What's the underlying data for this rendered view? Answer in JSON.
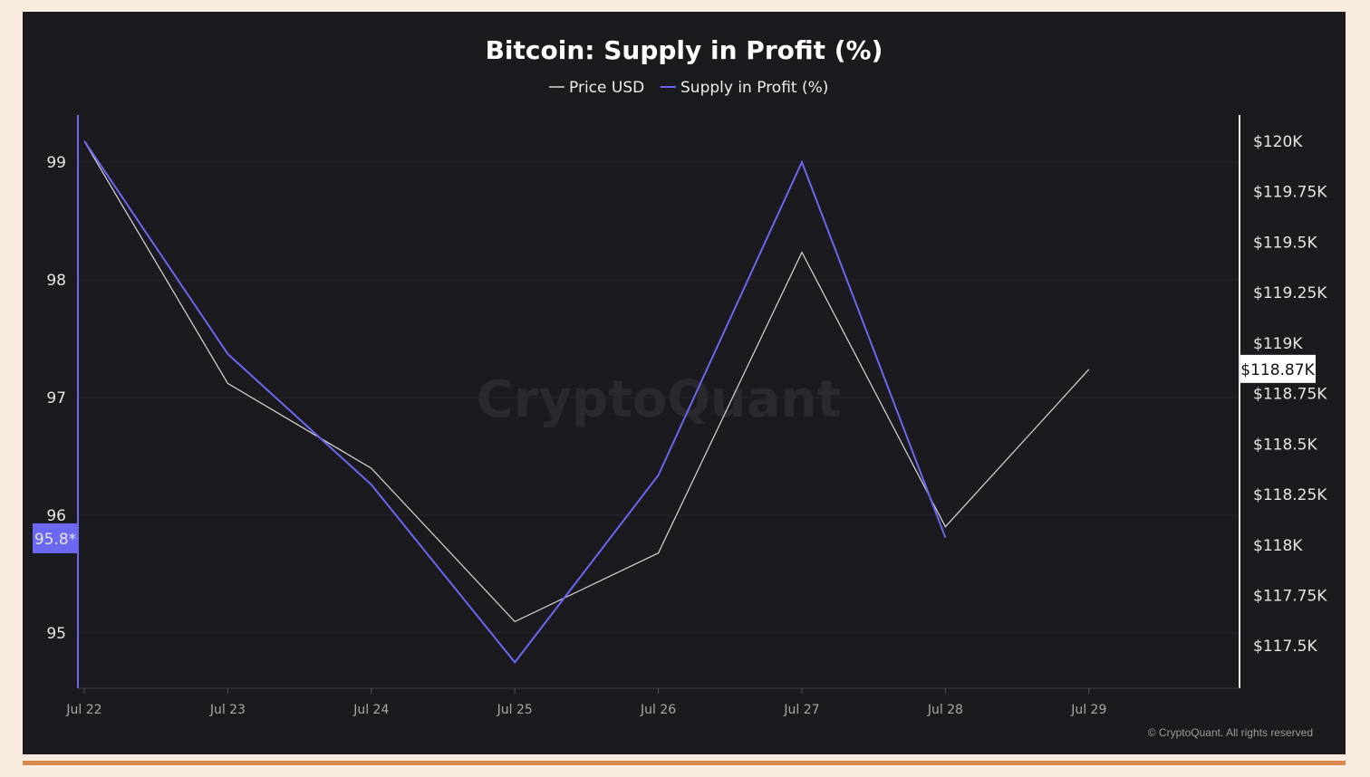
{
  "chart_data": {
    "type": "line",
    "title": "Bitcoin: Supply in Profit (%)",
    "categories": [
      "Jul 22",
      "Jul 23",
      "Jul 24",
      "Jul 25",
      "Jul 26",
      "Jul 27",
      "Jul 28",
      "Jul 29"
    ],
    "series": [
      {
        "name": "Price USD",
        "axis": "right",
        "color": "#d9d9d9",
        "unit": "K USD",
        "values": [
          120.0,
          118.8,
          118.38,
          117.62,
          117.96,
          119.45,
          118.09,
          118.87
        ]
      },
      {
        "name": "Supply in Profit (%)",
        "axis": "left",
        "color": "#6b67f0",
        "values": [
          99.18,
          97.37,
          96.26,
          94.75,
          96.34,
          99.0,
          95.81,
          null
        ]
      }
    ],
    "left_axis": {
      "ticks": [
        99,
        98,
        97,
        96,
        95
      ],
      "ylim": [
        94.53,
        99.4
      ],
      "current_label": "95.8*",
      "current_value": 95.8
    },
    "right_axis": {
      "ticks": [
        120,
        119.75,
        119.5,
        119.25,
        119,
        118.75,
        118.5,
        118.25,
        118,
        117.75,
        117.5
      ],
      "tick_labels": [
        "$120K",
        "$119.75K",
        "$119.5K",
        "$119.25K",
        "$119K",
        "$118.75K",
        "$118.5K",
        "$118.25K",
        "$118K",
        "$117.75K",
        "$117.5K"
      ],
      "ylim": [
        117.29,
        120.13
      ],
      "current_label": "$118.87K",
      "current_value": 118.87
    },
    "legend": [
      "Price USD",
      "Supply in Profit (%)"
    ],
    "legend_position": "top-center",
    "grid": true
  },
  "watermark": "CryptoQuant",
  "copyright": "© CryptoQuant. All rights reserved"
}
